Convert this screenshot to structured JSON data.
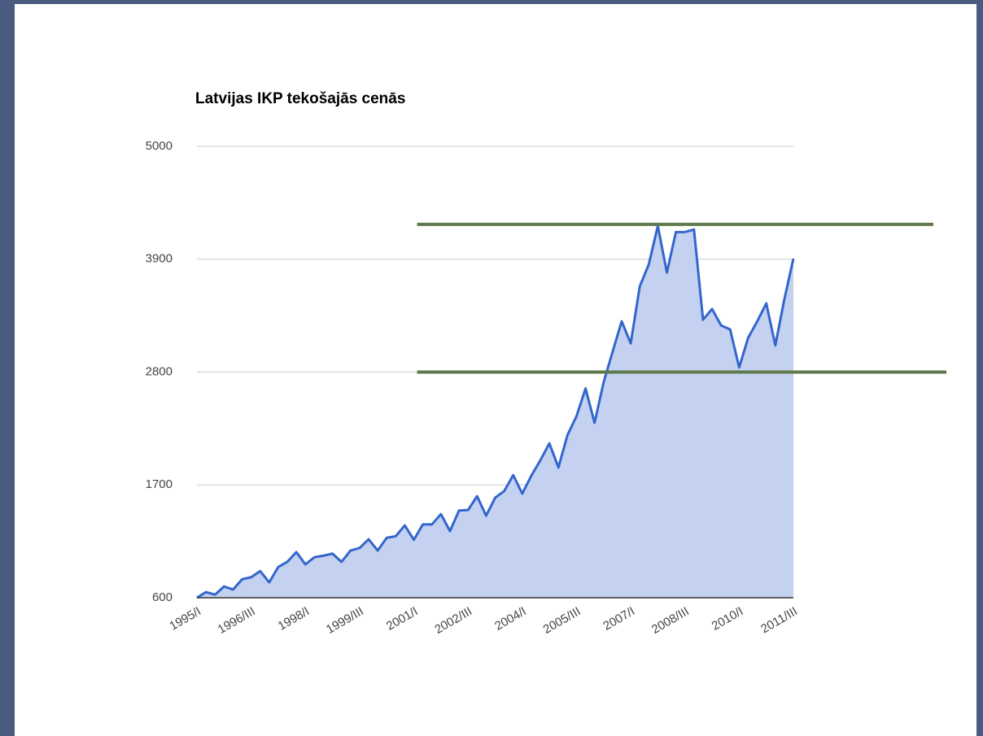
{
  "chart_data": {
    "type": "area",
    "title": "Latvijas IKP tekošajās cenās",
    "categories": [
      "1995/I",
      null,
      null,
      null,
      null,
      null,
      "1996/III",
      null,
      null,
      null,
      null,
      null,
      "1998/I",
      null,
      null,
      null,
      null,
      null,
      "1999/III",
      null,
      null,
      null,
      null,
      null,
      "2001/I",
      null,
      null,
      null,
      null,
      null,
      "2002/III",
      null,
      null,
      null,
      null,
      null,
      "2004/I",
      null,
      null,
      null,
      null,
      null,
      "2005/III",
      null,
      null,
      null,
      null,
      null,
      "2007/I",
      null,
      null,
      null,
      null,
      null,
      "2008/III",
      null,
      null,
      null,
      null,
      null,
      "2010/I",
      null,
      null,
      null,
      null,
      null,
      "2011/III"
    ],
    "values": [
      600,
      655,
      630,
      710,
      680,
      780,
      800,
      860,
      750,
      900,
      950,
      1045,
      925,
      995,
      1010,
      1030,
      950,
      1060,
      1085,
      1170,
      1060,
      1185,
      1200,
      1305,
      1165,
      1315,
      1315,
      1415,
      1250,
      1450,
      1455,
      1590,
      1400,
      1575,
      1640,
      1795,
      1615,
      1790,
      1940,
      2105,
      1870,
      2185,
      2370,
      2640,
      2305,
      2700,
      3000,
      3295,
      3080,
      3635,
      3850,
      4225,
      3770,
      4165,
      4165,
      4190,
      3310,
      3415,
      3255,
      3215,
      2845,
      3135,
      3295,
      3470,
      3060,
      3510,
      3905
    ],
    "color": "#3366cc",
    "fill_color": "#c5d1f0",
    "ylim": [
      600,
      5000
    ],
    "yticks": [
      600,
      1700,
      2800,
      3900,
      5000
    ],
    "grid": true,
    "reference_lines": [
      {
        "value": 4240,
        "color": "#5e7a4c"
      },
      {
        "value": 2800,
        "color": "#5e7a4c"
      }
    ]
  }
}
